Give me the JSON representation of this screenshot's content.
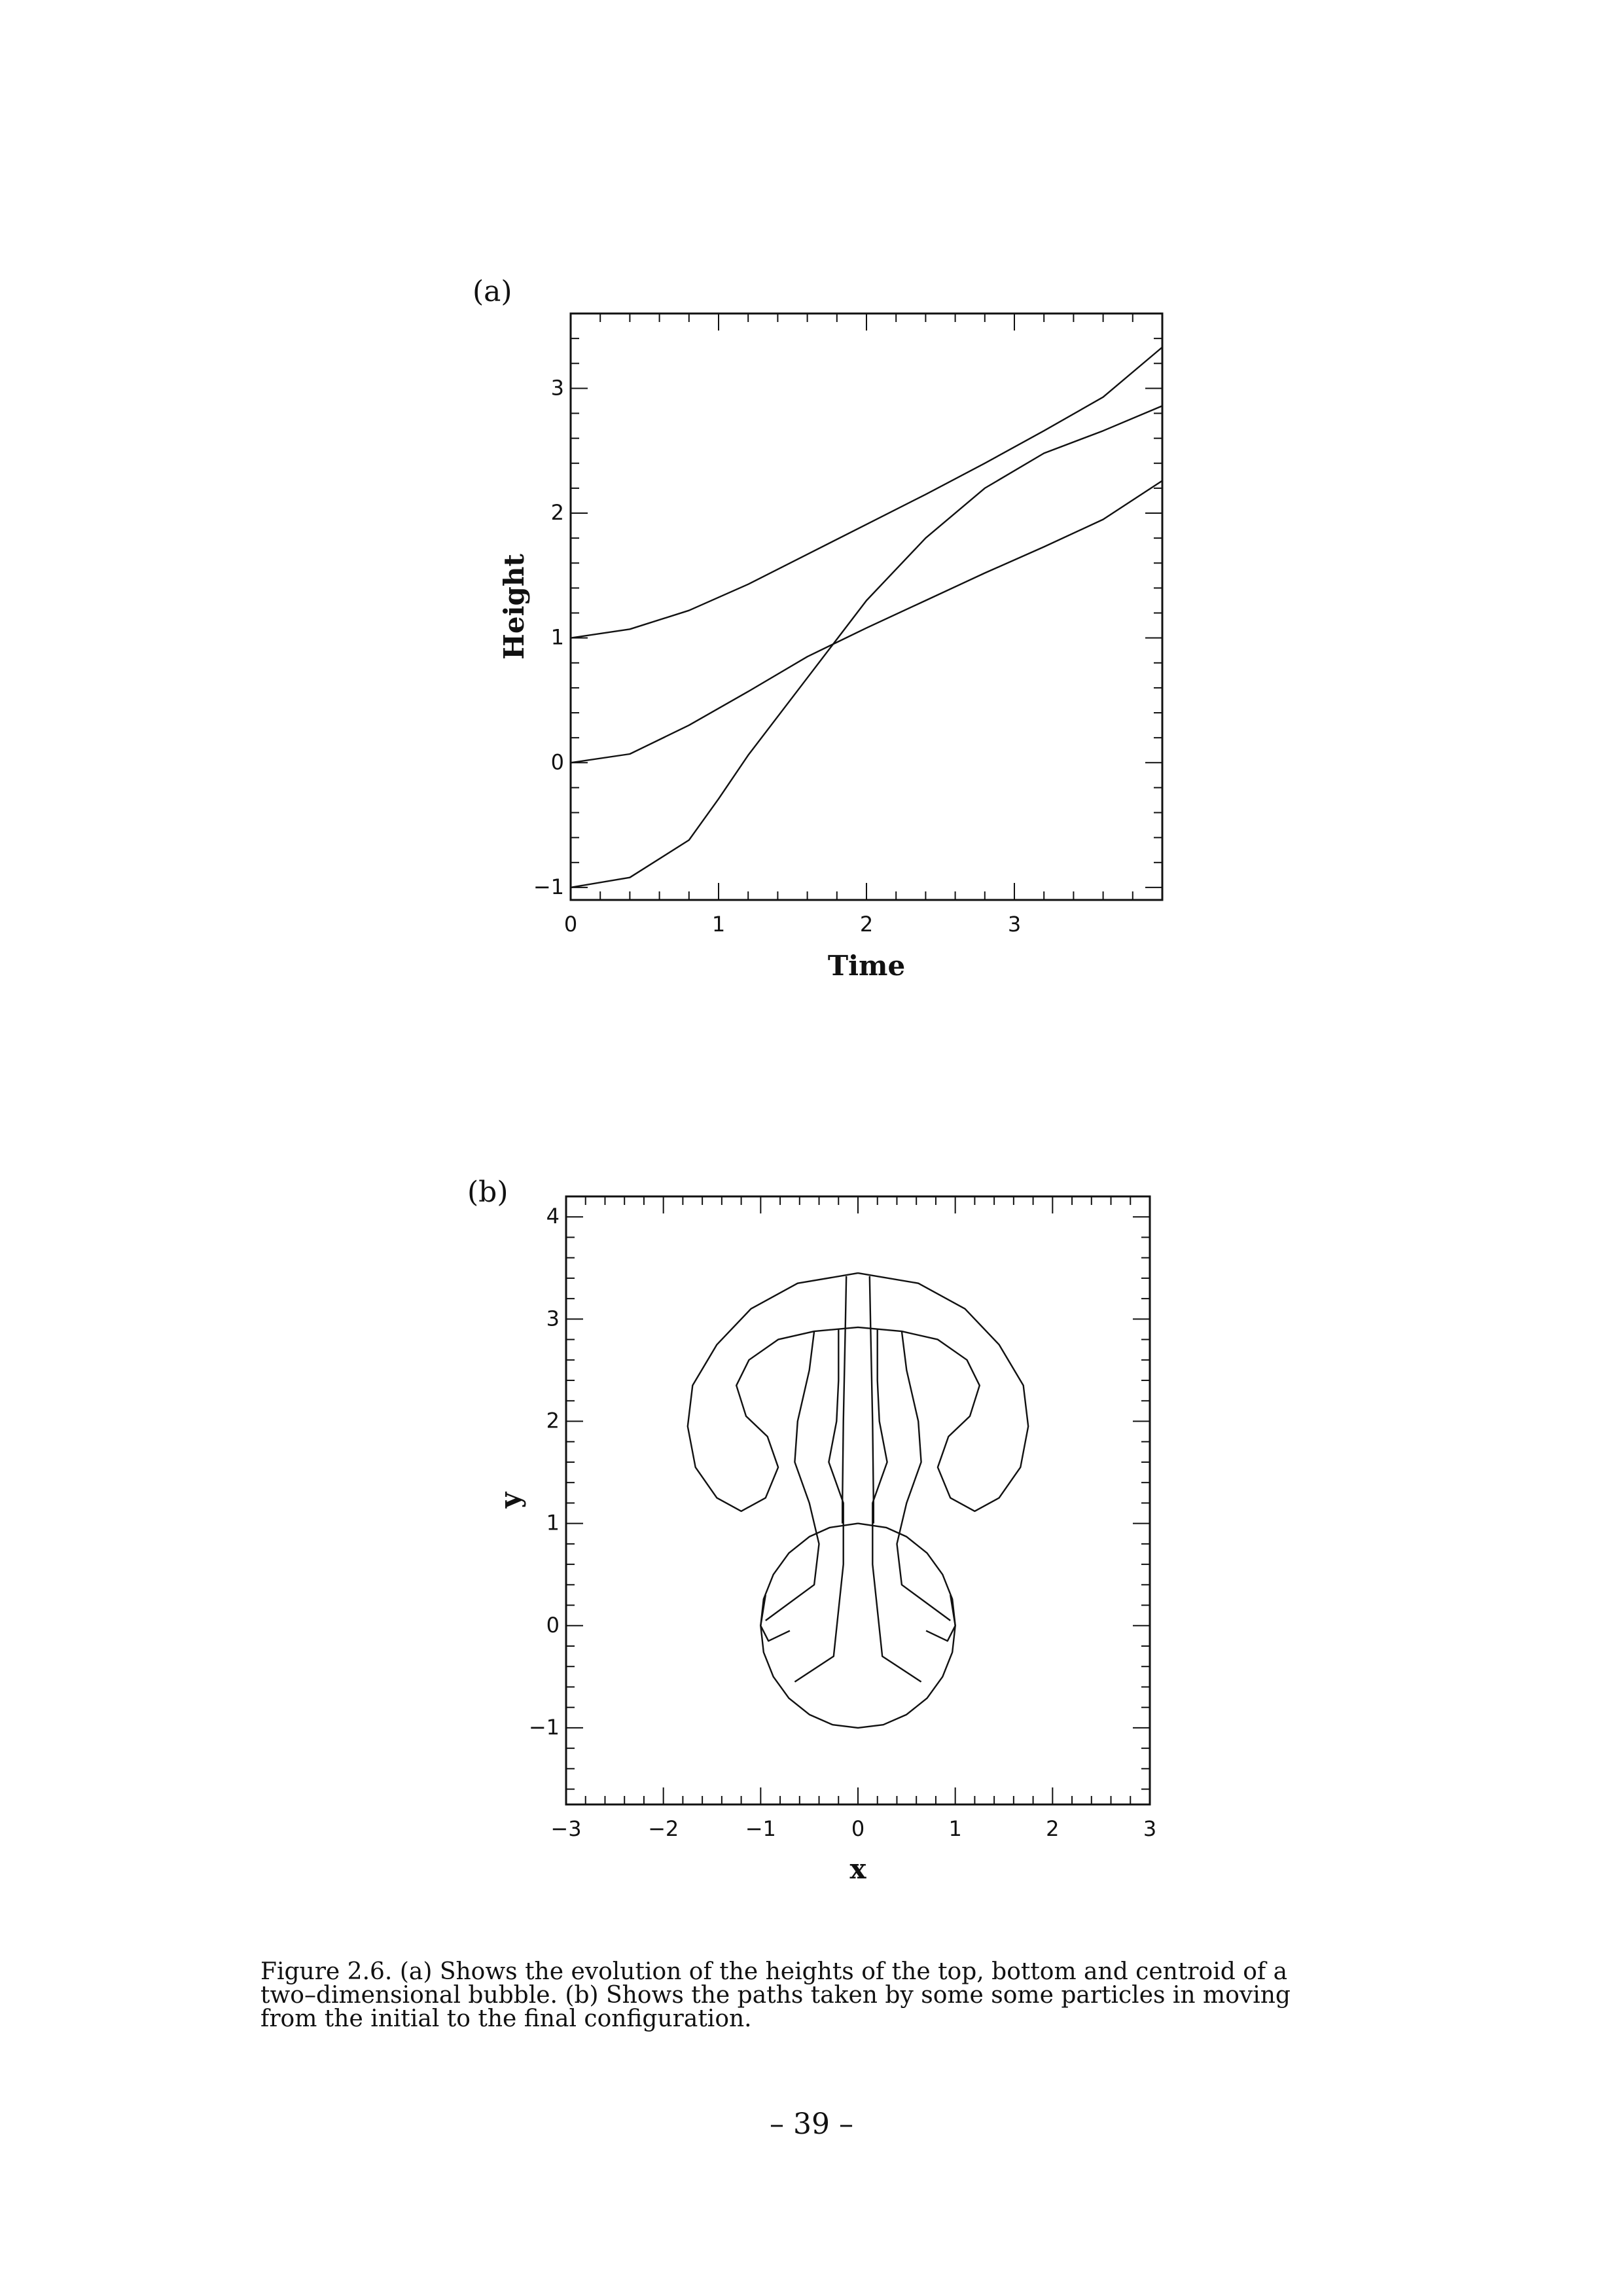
{
  "panel_a": {
    "label": "(a)"
  },
  "panel_b": {
    "label": "(b)"
  },
  "chart_data": [
    {
      "type": "line",
      "panel": "(a)",
      "xlabel": "Time",
      "ylabel": "Height",
      "xlim": [
        0,
        4
      ],
      "ylim": [
        -1.1,
        3.6
      ],
      "x_ticks": [
        0,
        1,
        2,
        3
      ],
      "y_ticks": [
        -1,
        0,
        1,
        2,
        3
      ],
      "grid": false,
      "series": [
        {
          "x": [
            0,
            0.4,
            0.8,
            1.2,
            1.6,
            2.0,
            2.4,
            2.8,
            3.2,
            3.6,
            4.0
          ],
          "y": [
            1.0,
            1.07,
            1.22,
            1.43,
            1.67,
            1.91,
            2.15,
            2.4,
            2.66,
            2.93,
            3.33
          ]
        },
        {
          "x": [
            0,
            0.4,
            0.8,
            1.2,
            1.6,
            2.0,
            2.4,
            2.8,
            3.2,
            3.6,
            4.0
          ],
          "y": [
            0.0,
            0.07,
            0.3,
            0.57,
            0.85,
            1.08,
            1.3,
            1.52,
            1.73,
            1.95,
            2.26
          ]
        },
        {
          "x": [
            0,
            0.4,
            0.8,
            1.0,
            1.2,
            1.6,
            2.0,
            2.4,
            2.8,
            3.2,
            3.6,
            4.0
          ],
          "y": [
            -1.0,
            -0.92,
            -0.62,
            -0.29,
            0.06,
            0.68,
            1.3,
            1.8,
            2.2,
            2.48,
            2.66,
            2.86
          ]
        }
      ]
    },
    {
      "type": "line",
      "panel": "(b)",
      "xlabel": "x",
      "ylabel": "y",
      "xlim": [
        -3,
        3
      ],
      "ylim": [
        -1.75,
        4.2
      ],
      "x_ticks": [
        -3,
        -2,
        -1,
        0,
        1,
        2,
        3
      ],
      "y_ticks": [
        -1,
        0,
        1,
        2,
        3,
        4
      ],
      "grid": false,
      "series": [
        {
          "x": [
            0.0,
            0.29,
            0.5,
            0.71,
            0.87,
            0.97,
            1.0,
            0.97,
            0.87,
            0.71,
            0.5,
            0.26,
            0.0,
            -0.26,
            -0.5,
            -0.71,
            -0.87,
            -0.97,
            -1.0,
            -0.97,
            -0.87,
            -0.71,
            -0.5,
            -0.29,
            0.0
          ],
          "y": [
            1.0,
            0.96,
            0.87,
            0.71,
            0.5,
            0.26,
            0.0,
            -0.26,
            -0.5,
            -0.71,
            -0.87,
            -0.97,
            -1.0,
            -0.97,
            -0.87,
            -0.71,
            -0.5,
            -0.26,
            0.0,
            0.26,
            0.5,
            0.71,
            0.87,
            0.96,
            1.0
          ]
        },
        {
          "x": [
            0.0,
            0.62,
            1.1,
            1.45,
            1.7,
            1.75,
            1.67,
            1.45,
            1.2,
            0.95,
            0.82,
            0.93,
            1.15,
            1.25,
            1.12,
            0.82,
            0.45,
            0.0,
            -0.45,
            -0.82,
            -1.12,
            -1.25,
            -1.15,
            -0.93,
            -0.82,
            -0.95,
            -1.2,
            -1.45,
            -1.67,
            -1.75,
            -1.7,
            -1.45,
            -1.1,
            -0.62,
            0.0
          ],
          "y": [
            3.45,
            3.35,
            3.1,
            2.75,
            2.35,
            1.95,
            1.55,
            1.25,
            1.12,
            1.25,
            1.55,
            1.85,
            2.05,
            2.35,
            2.6,
            2.8,
            2.88,
            2.92,
            2.88,
            2.8,
            2.6,
            2.35,
            2.05,
            1.85,
            1.55,
            1.25,
            1.12,
            1.25,
            1.55,
            1.95,
            2.35,
            2.75,
            3.1,
            3.35,
            3.45
          ]
        },
        {
          "x": [
            -0.12,
            -0.13,
            -0.15,
            -0.16,
            -0.16
          ],
          "y": [
            3.42,
            2.92,
            2.0,
            1.2,
            1.0
          ]
        },
        {
          "x": [
            0.12,
            0.13,
            0.15,
            0.16,
            0.16
          ],
          "y": [
            3.42,
            2.92,
            2.0,
            1.2,
            1.0
          ]
        },
        {
          "x": [
            -0.45,
            -0.5,
            -0.62,
            -0.65,
            -0.5,
            -0.4,
            -0.45,
            -0.95
          ],
          "y": [
            2.88,
            2.5,
            2.0,
            1.6,
            1.2,
            0.8,
            0.4,
            0.05
          ]
        },
        {
          "x": [
            0.45,
            0.5,
            0.62,
            0.65,
            0.5,
            0.4,
            0.45,
            0.95
          ],
          "y": [
            2.88,
            2.5,
            2.0,
            1.6,
            1.2,
            0.8,
            0.4,
            0.05
          ]
        },
        {
          "x": [
            -0.2,
            -0.2,
            -0.22,
            -0.3,
            -0.15,
            -0.15,
            -0.25,
            -0.65
          ],
          "y": [
            2.9,
            2.4,
            2.0,
            1.6,
            1.2,
            0.6,
            -0.3,
            -0.55
          ]
        },
        {
          "x": [
            0.2,
            0.2,
            0.22,
            0.3,
            0.15,
            0.15,
            0.25,
            0.65
          ],
          "y": [
            2.9,
            2.4,
            2.0,
            1.6,
            1.2,
            0.6,
            -0.3,
            -0.55
          ]
        },
        {
          "x": [
            -0.95,
            -1.0,
            -0.92,
            -0.7
          ],
          "y": [
            0.3,
            0.0,
            -0.15,
            -0.05
          ]
        },
        {
          "x": [
            0.95,
            1.0,
            0.92,
            0.7
          ],
          "y": [
            0.3,
            0.0,
            -0.15,
            -0.05
          ]
        }
      ]
    }
  ],
  "caption": {
    "line1": "Figure 2.6. (a) Shows the evolution of the heights of the top, bottom and centroid  of a",
    "line2": "two–dimensional bubble. (b) Shows the paths taken by some some particles in moving",
    "line3": "from the initial to the final configuration."
  },
  "page_number": "– 39 –"
}
